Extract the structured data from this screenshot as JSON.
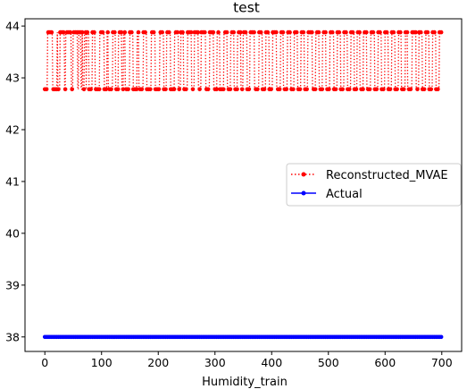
{
  "chart_data": {
    "type": "line",
    "title": "test",
    "xlabel": "Humidity_train",
    "ylabel": "",
    "xlim": [
      -35,
      735
    ],
    "ylim": [
      37.72,
      44.14
    ],
    "xticks": [
      0,
      100,
      200,
      300,
      400,
      500,
      600,
      700
    ],
    "yticks": [
      38,
      39,
      40,
      41,
      42,
      43,
      44
    ],
    "xtick_labels": [
      "0",
      "100",
      "200",
      "300",
      "400",
      "500",
      "600",
      "700"
    ],
    "ytick_labels": [
      "38",
      "39",
      "40",
      "41",
      "42",
      "43",
      "44"
    ],
    "grid": false,
    "legend_position": "center-right",
    "series": [
      {
        "name": "Reconstructed_MVAE",
        "color": "#ff0000",
        "line_style": "dotted",
        "marker": "circle",
        "x_range": [
          0,
          700
        ],
        "n_points": 701,
        "value_levels": [
          42.78,
          43.88
        ],
        "switch_points": [
          0,
          5,
          14,
          22,
          23,
          27,
          35,
          37,
          47,
          50,
          58,
          60,
          64,
          66,
          67,
          70,
          73,
          74,
          78,
          84,
          89,
          97,
          105,
          110,
          112,
          120,
          125,
          130,
          136,
          139,
          142,
          150,
          156,
          163,
          166,
          174,
          180,
          188,
          195,
          203,
          210,
          215,
          222,
          229,
          236,
          240,
          245,
          252,
          259,
          264,
          271,
          276,
          284,
          291,
          298,
          304,
          309,
          316,
          322,
          328,
          334,
          340,
          346,
          350,
          357,
          362,
          370,
          378,
          384,
          390,
          396,
          402,
          409,
          416,
          421,
          428,
          434,
          440,
          446,
          452,
          458,
          464,
          472,
          478,
          484,
          490,
          496,
          503,
          510,
          516,
          522,
          528,
          534,
          540,
          546,
          551,
          556,
          562,
          568,
          575,
          582,
          588,
          594,
          600,
          606,
          612,
          618,
          624,
          629,
          636,
          640,
          648,
          655,
          660,
          666,
          672,
          678,
          684,
          690,
          696
        ]
      },
      {
        "name": "Actual",
        "color": "#0000ff",
        "line_style": "solid",
        "marker": "circle",
        "x_range": [
          0,
          700
        ],
        "n_points": 701,
        "value": 38.0
      }
    ]
  }
}
